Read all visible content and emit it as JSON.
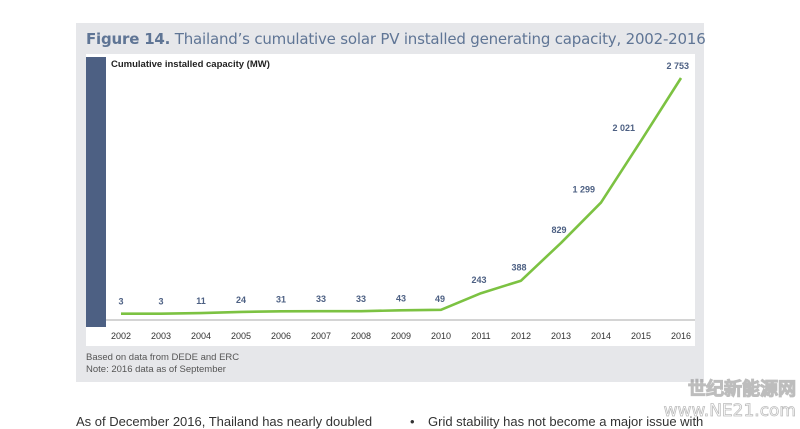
{
  "figure": {
    "label": "Figure 14.",
    "title": "Thailand’s cumulative solar PV installed generating capacity, 2002-2016",
    "source_note": "Based on data from DEDE and ERC",
    "note": "Note: 2016 data as of September"
  },
  "colors": {
    "line": "#7cc242",
    "bar": "#4d6083",
    "title": "#5f7595",
    "value_label": "#4d6083",
    "panel": "#e6e7ea"
  },
  "chart_data": {
    "type": "line",
    "title": "Thailand’s cumulative solar PV installed generating capacity, 2002-2016",
    "ylabel": "Cumulative installed capacity (MW)",
    "xlabel": "",
    "categories": [
      "2002",
      "2003",
      "2004",
      "2005",
      "2006",
      "2007",
      "2008",
      "2009",
      "2010",
      "2011",
      "2012",
      "2013",
      "2014",
      "2015",
      "2016"
    ],
    "series": [
      {
        "name": "Cumulative installed capacity (MW)",
        "values": [
          3,
          3,
          11,
          24,
          31,
          33,
          33,
          43,
          49,
          243,
          388,
          829,
          1299,
          2021,
          2753
        ]
      }
    ],
    "value_labels": [
      "3",
      "3",
      "11",
      "24",
      "31",
      "33",
      "33",
      "43",
      "49",
      "243",
      "388",
      "829",
      "1 299",
      "2 021",
      "2 753"
    ],
    "ylim": [
      0,
      2753
    ],
    "grid": false,
    "legend": "none"
  },
  "body": {
    "left_text": "As of December 2016, Thailand has nearly doubled",
    "right_bullet": "•",
    "right_text": "Grid stability has not become a major issue with"
  },
  "watermark": {
    "line1": "世纪新能源网",
    "line2": "www.NE21.com"
  }
}
